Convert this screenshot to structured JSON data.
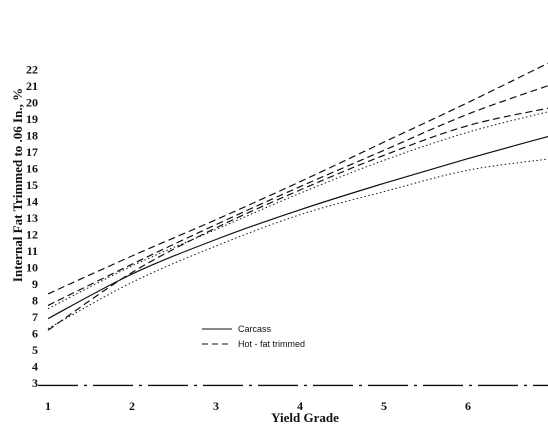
{
  "chart_data": {
    "type": "line",
    "title": "",
    "xlabel": "Yield Grade",
    "ylabel": "Internal Fat Trimmed to .06 In., %",
    "xlim": [
      1,
      7
    ],
    "ylim": [
      3,
      22
    ],
    "x_ticks": [
      "1",
      "2",
      "3",
      "4",
      "5",
      "6"
    ],
    "y_ticks": [
      "3",
      "4",
      "5",
      "6",
      "7",
      "8",
      "9",
      "10",
      "11",
      "12",
      "13",
      "14",
      "15",
      "16",
      "17",
      "18",
      "19",
      "20",
      "21",
      "22"
    ],
    "grid": false,
    "legend_position": "lower-left",
    "legend": [
      {
        "label": "Carcass",
        "dash": "solid"
      },
      {
        "label": "Hot - fat trimmed",
        "dash": "dashed"
      }
    ],
    "x": [
      1,
      2,
      3,
      4,
      5,
      6,
      7
    ],
    "series": [
      {
        "name": "Carcass",
        "role": "mean",
        "style": "solid",
        "values": [
          6.9,
          9.6,
          11.7,
          13.5,
          15.1,
          16.6,
          18.0
        ]
      },
      {
        "name": "Carcass",
        "role": "upper",
        "style": "dotted",
        "values": [
          7.5,
          10.1,
          12.3,
          14.5,
          16.5,
          18.2,
          19.5
        ]
      },
      {
        "name": "Carcass",
        "role": "lower",
        "style": "dotted",
        "values": [
          6.3,
          9.1,
          11.3,
          13.2,
          14.6,
          15.9,
          16.6
        ]
      },
      {
        "name": "Hot - fat trimmed",
        "role": "mean",
        "style": "dashed",
        "values": [
          7.7,
          10.2,
          12.6,
          14.9,
          17.1,
          19.3,
          21.1
        ]
      },
      {
        "name": "Hot - fat trimmed",
        "role": "upper",
        "style": "dashed",
        "values": [
          8.4,
          10.7,
          12.9,
          15.2,
          17.6,
          20.0,
          22.5
        ]
      },
      {
        "name": "Hot - fat trimmed",
        "role": "lower",
        "style": "dashed",
        "values": [
          6.2,
          9.7,
          12.4,
          14.7,
          16.8,
          18.6,
          19.7
        ]
      }
    ],
    "baseline_value": 2.85
  }
}
